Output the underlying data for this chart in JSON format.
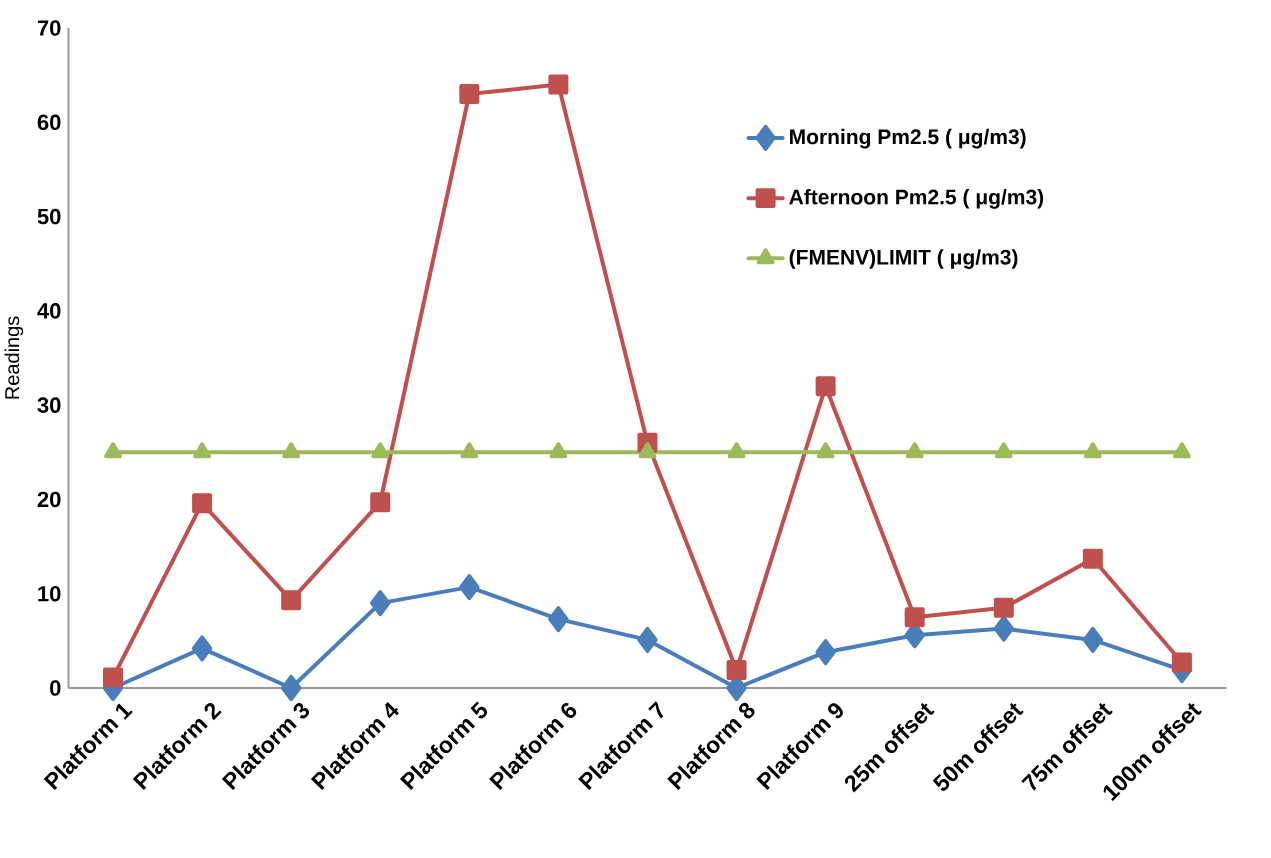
{
  "chart_data": {
    "type": "line",
    "ylabel": "Readings",
    "categories": [
      "Platform 1",
      "Platform 2",
      "Platform 3",
      "Platform 4",
      "Platform 5",
      "Platform 6",
      "Platform 7",
      "Platform 8",
      "Platform 9",
      "25m offset",
      "50m offset",
      "75m offset",
      "100m offset"
    ],
    "series": [
      {
        "name": "Morning Pm2.5 ( μg/m3)",
        "color": "#4a7ebb",
        "marker": "diamond",
        "values": [
          0,
          4.2,
          0,
          9.0,
          10.7,
          7.3,
          5.1,
          0,
          3.8,
          5.6,
          6.3,
          5.1,
          1.9
        ]
      },
      {
        "name": "Afternoon Pm2.5 ( μg/m3)",
        "color": "#c0504d",
        "marker": "square",
        "values": [
          1.1,
          19.6,
          9.3,
          19.7,
          63.0,
          64.0,
          26.0,
          1.9,
          32.0,
          7.5,
          8.5,
          13.7,
          2.7
        ]
      },
      {
        "name": "(FMENV)LIMIT ( μg/m3)",
        "color": "#9bbb59",
        "marker": "triangle",
        "values": [
          25,
          25,
          25,
          25,
          25,
          25,
          25,
          25,
          25,
          25,
          25,
          25,
          25
        ]
      }
    ],
    "ylim": [
      0,
      70
    ],
    "yticks": [
      0,
      10,
      20,
      30,
      40,
      50,
      60,
      70
    ],
    "grid": false,
    "legend": "top right",
    "line_style": "solid"
  }
}
